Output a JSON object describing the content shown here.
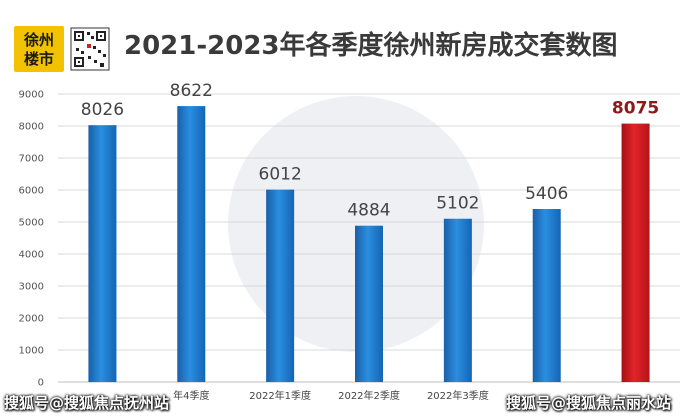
{
  "header": {
    "logo_line1": "徐州",
    "logo_line2": "楼市",
    "title": "2021-2023年各季度徐州新房成交套数图"
  },
  "icons": {
    "qr": "qr-code-icon"
  },
  "footer": {
    "left": "搜狐号@搜狐焦点抚州站",
    "right": "搜狐号@搜狐焦点丽水站"
  },
  "colors": {
    "bar": "#1f78c8",
    "highlight_bar": "#c8161d",
    "highlight_label": "#8b1a1a"
  },
  "chart_data": {
    "type": "bar",
    "categories": [
      "",
      "年4季度",
      "2022年1季度",
      "2022年2季度",
      "2022年3季度",
      "",
      ""
    ],
    "values": [
      8026,
      8622,
      6012,
      4884,
      5102,
      5406,
      8075
    ],
    "highlight_index": 6,
    "ylim": [
      0,
      9000
    ],
    "yticks": [
      0,
      1000,
      2000,
      3000,
      4000,
      5000,
      6000,
      7000,
      8000,
      9000
    ],
    "grid": true
  }
}
